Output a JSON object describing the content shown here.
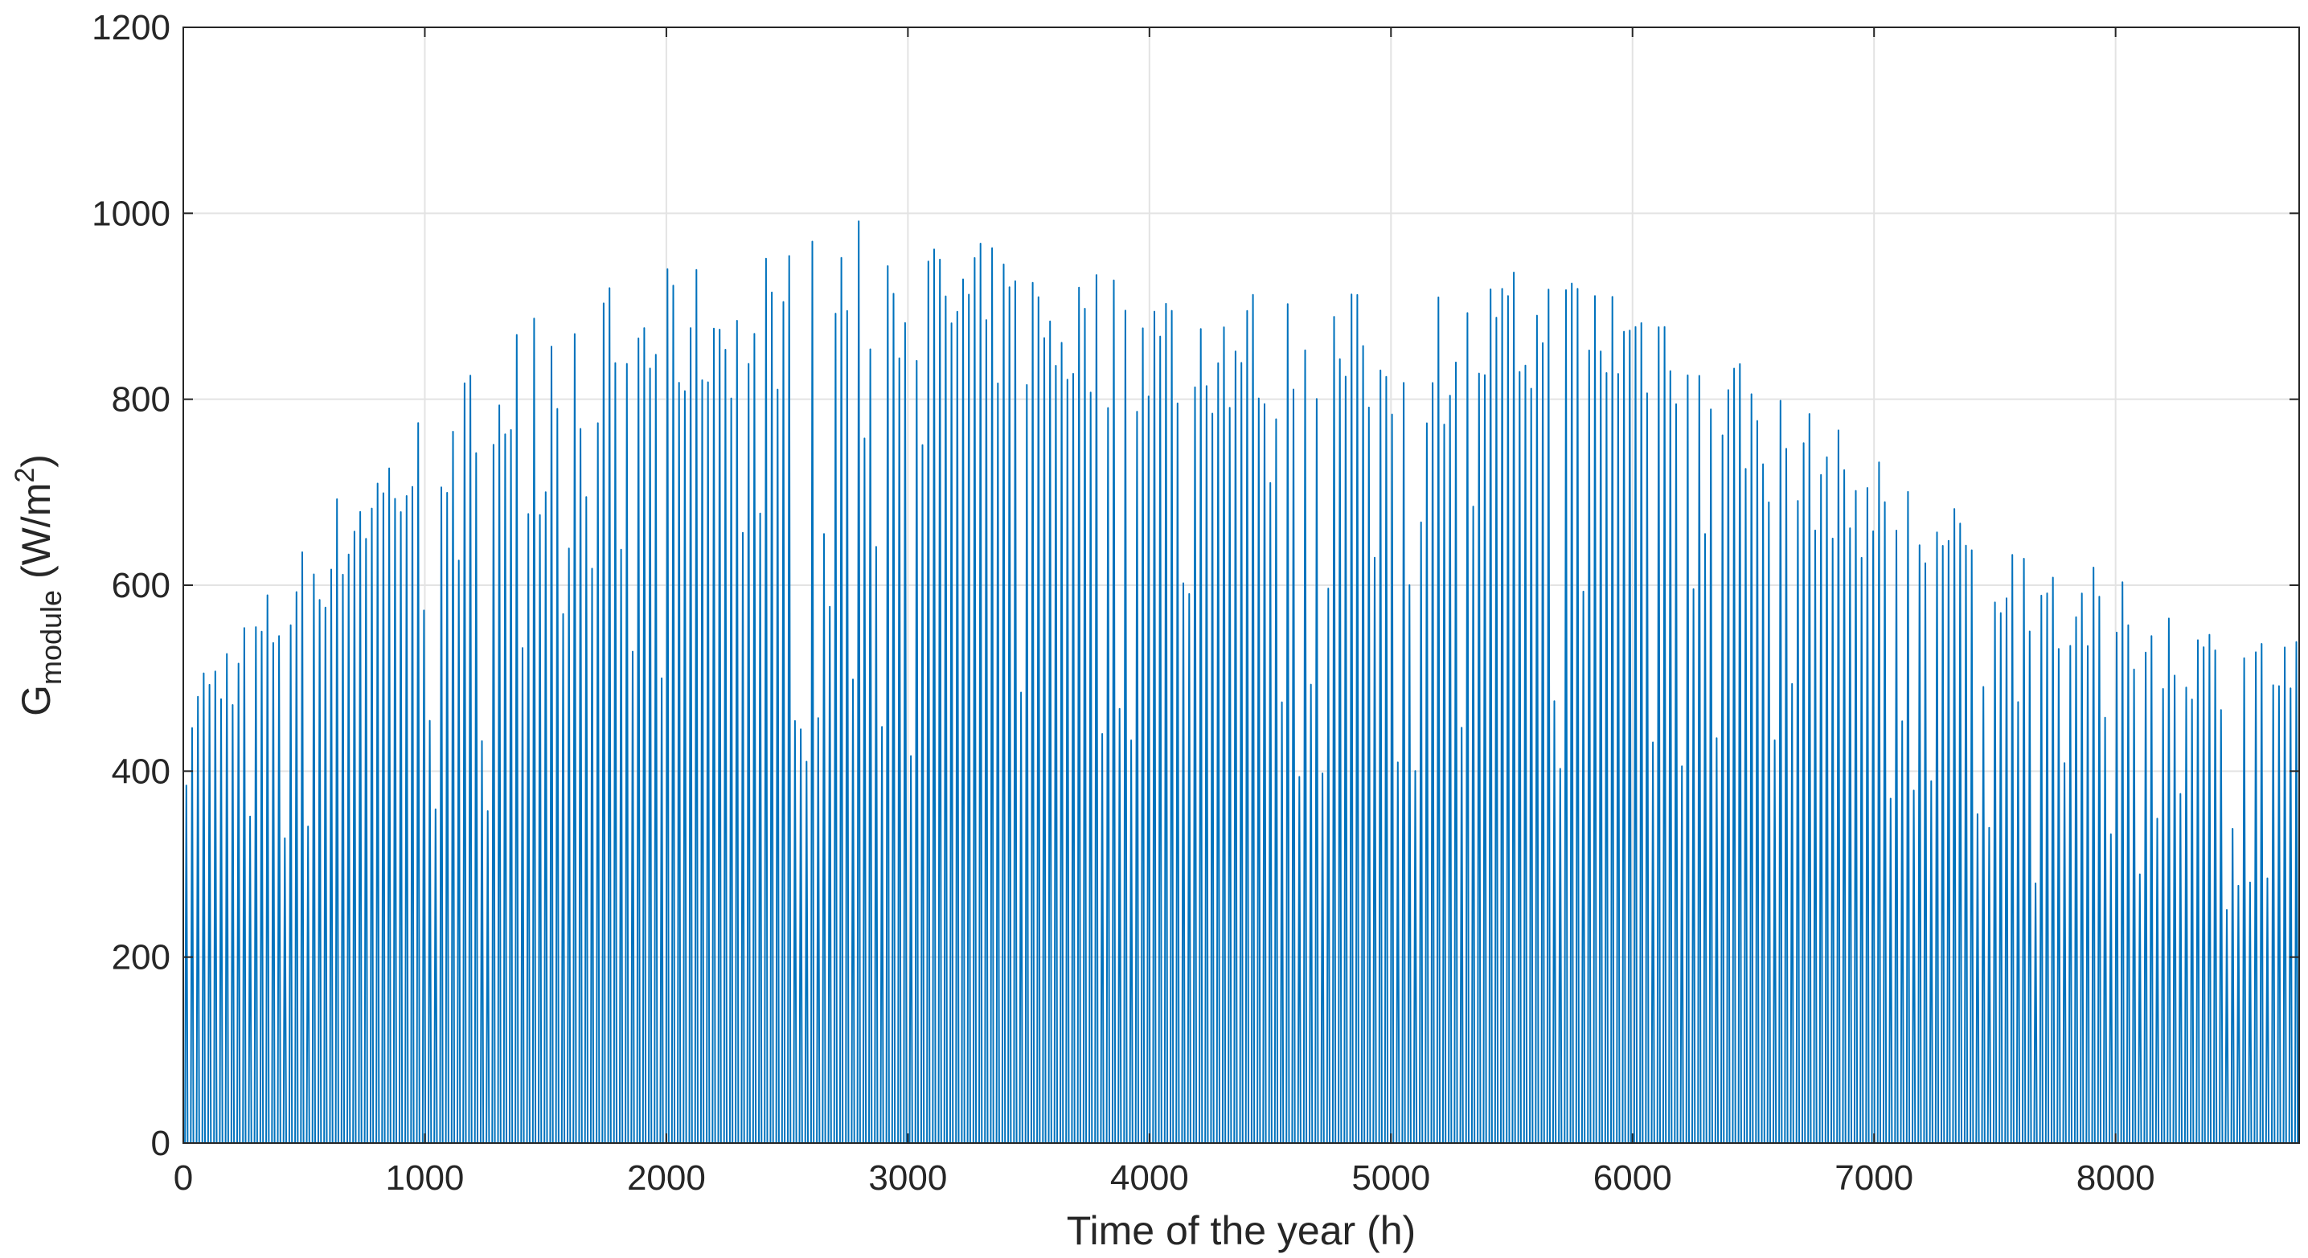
{
  "chart_data": {
    "type": "line",
    "title": "",
    "xlabel": "Time of the year (h)",
    "ylabel": {
      "base": "G",
      "subscript": "module",
      "unit_prefix": " (W/m",
      "superscript": "2",
      "unit_suffix": ")"
    },
    "xlim": [
      0,
      8760
    ],
    "ylim": [
      0,
      1200
    ],
    "x_ticks": [
      0,
      1000,
      2000,
      3000,
      4000,
      5000,
      6000,
      7000,
      8000
    ],
    "y_ticks": [
      0,
      200,
      400,
      600,
      800,
      1000,
      1200
    ],
    "grid": true,
    "series_color": "#0072BD",
    "daily_peaks_estimate": {
      "description": "Hourly irradiance drawn as one daylight pulse per day; approximate daily peak envelope (day of year -> peak W/m2)",
      "day": [
        0,
        15,
        31,
        46,
        59,
        74,
        90,
        105,
        120,
        135,
        151,
        166,
        181,
        196,
        212,
        227,
        243,
        258,
        273,
        288,
        304,
        319,
        334,
        349,
        365
      ],
      "peak": [
        470,
        560,
        690,
        760,
        830,
        860,
        880,
        900,
        930,
        900,
        880,
        870,
        860,
        850,
        850,
        870,
        880,
        860,
        760,
        700,
        640,
        600,
        560,
        520,
        500
      ]
    }
  }
}
